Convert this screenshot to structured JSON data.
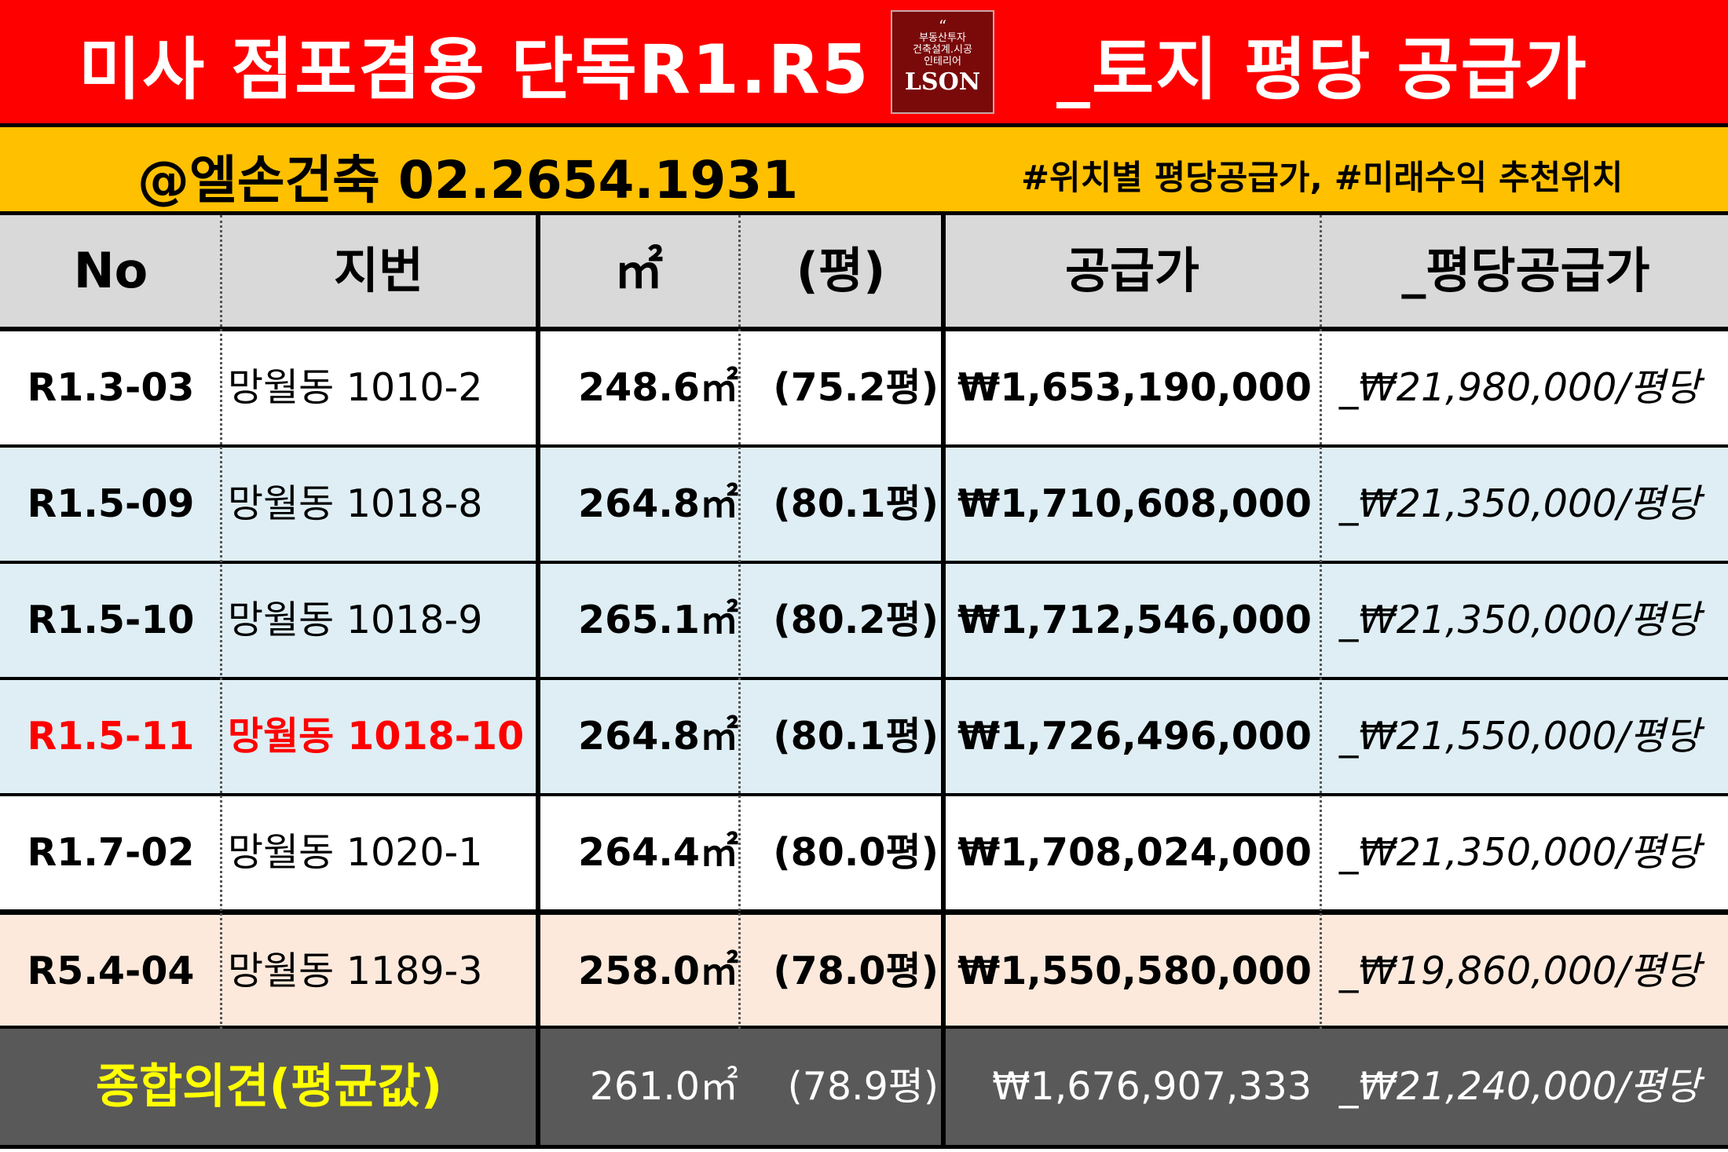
{
  "title": {
    "left": "미사 점포겸용 단독R1.R5",
    "right": "_토지 평당 공급가"
  },
  "logo": {
    "line1": "부동산투자",
    "line2": "건축설계.시공",
    "line3": "인테리어",
    "brand": "LSON",
    "quote": "“"
  },
  "subtitle": {
    "left": "@엘손건축 02.2654.1931",
    "right": "#위치별 평당공급가, #미래수익 추천위치"
  },
  "colors": {
    "title_bg": "#ff0000",
    "subtitle_bg": "#ffc000",
    "header_bg": "#d9d9d9",
    "blue_row": "#deeef4",
    "peach_row": "#fce9dc",
    "total_bg": "#595959",
    "highlight_text": "#ff0000",
    "total_label": "#ffff00"
  },
  "table": {
    "headers": {
      "no": "No",
      "jibeon": "지번",
      "m2": "㎡",
      "pyeong": "(평)",
      "price": "공급가",
      "unit_price": "_평당공급가"
    },
    "rows": [
      {
        "no": "R1.3-03",
        "jibeon": "망월동 1010-2",
        "m2": "248.6㎡",
        "pyeong": "(75.2평)",
        "price": "₩1,653,190,000",
        "unit_price": "_₩21,980,000/평당"
      },
      {
        "no": "R1.5-09",
        "jibeon": "망월동 1018-8",
        "m2": "264.8㎡",
        "pyeong": "(80.1평)",
        "price": "₩1,710,608,000",
        "unit_price": "_₩21,350,000/평당"
      },
      {
        "no": "R1.5-10",
        "jibeon": "망월동 1018-9",
        "m2": "265.1㎡",
        "pyeong": "(80.2평)",
        "price": "₩1,712,546,000",
        "unit_price": "_₩21,350,000/평당"
      },
      {
        "no": "R1.5-11",
        "jibeon": "망월동 1018-10",
        "m2": "264.8㎡",
        "pyeong": "(80.1평)",
        "price": "₩1,726,496,000",
        "unit_price": "_₩21,550,000/평당"
      },
      {
        "no": "R1.7-02",
        "jibeon": "망월동 1020-1",
        "m2": "264.4㎡",
        "pyeong": "(80.0평)",
        "price": "₩1,708,024,000",
        "unit_price": "_₩21,350,000/평당"
      },
      {
        "no": "R5.4-04",
        "jibeon": "망월동 1189-3",
        "m2": "258.0㎡",
        "pyeong": "(78.0평)",
        "price": "₩1,550,580,000",
        "unit_price": "_₩19,860,000/평당"
      }
    ],
    "total": {
      "label": "종합의견(평균값)",
      "m2": "261.0㎡",
      "pyeong": "(78.9평)",
      "price": "₩1,676,907,333",
      "unit_price": "_₩21,240,000/평당"
    }
  }
}
